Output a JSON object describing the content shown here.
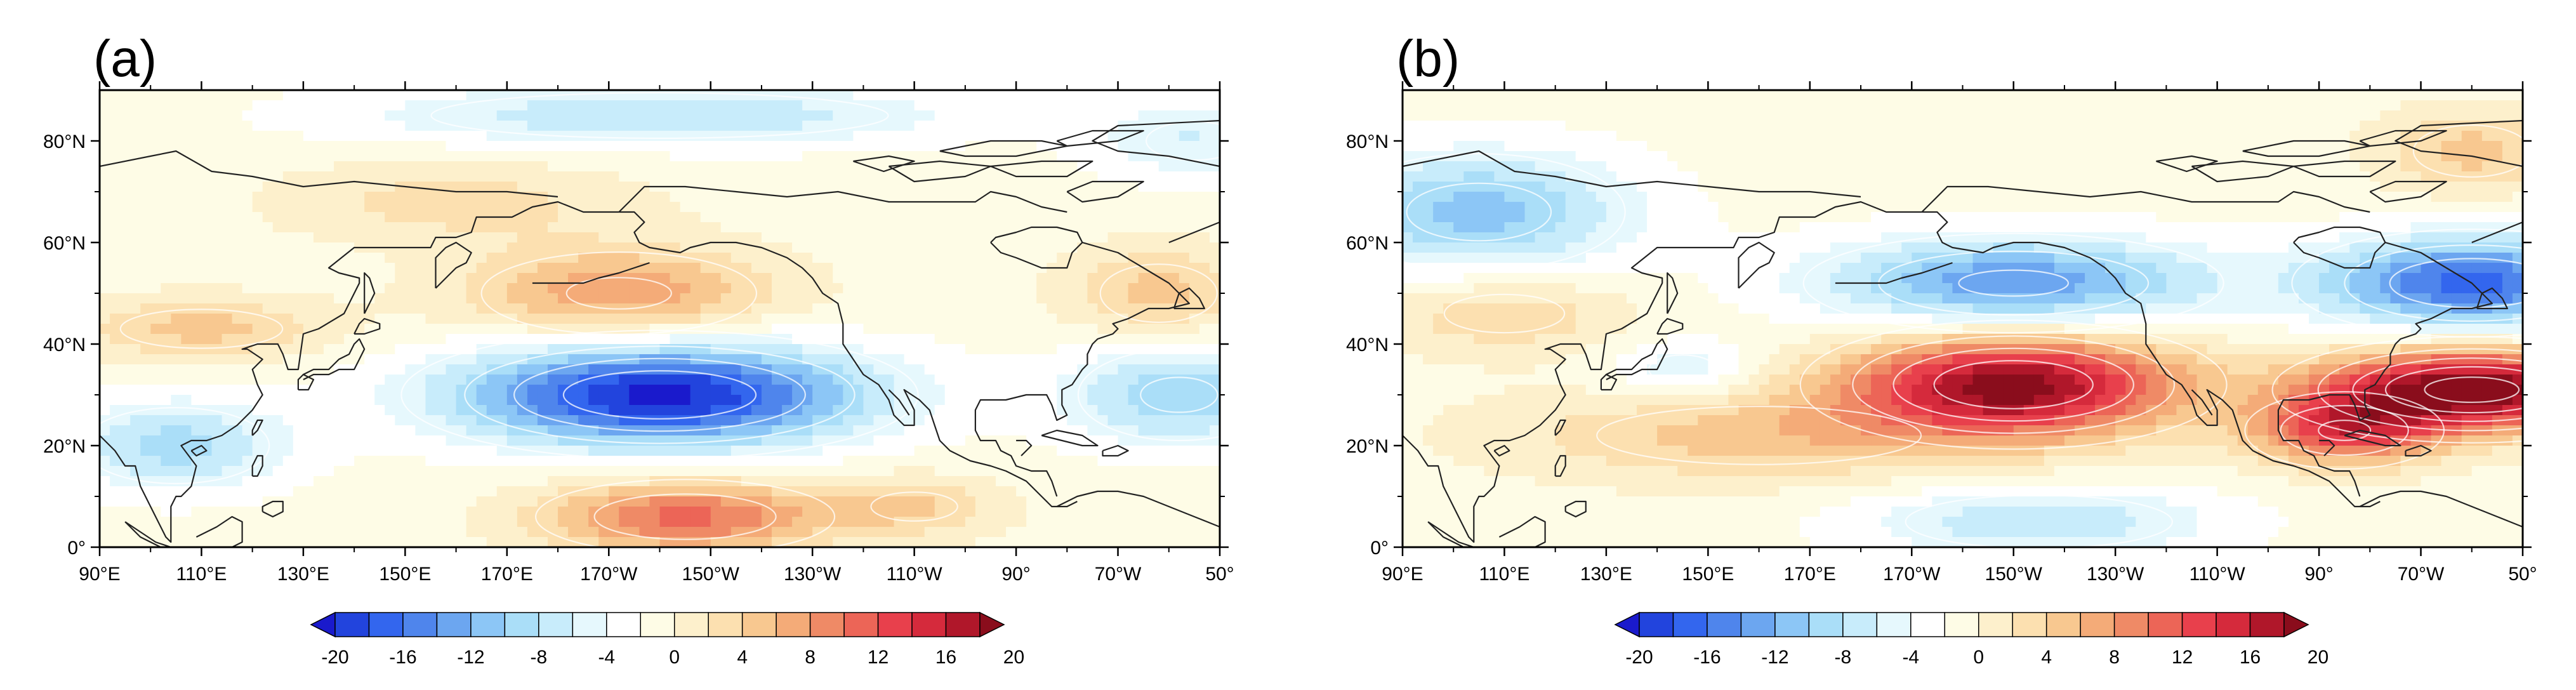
{
  "chart_data": [
    {
      "type": "heatmap",
      "panel_label": "(a)",
      "projection": "cylindrical-equidistant",
      "lon_ticks": [
        "90°E",
        "110°E",
        "130°E",
        "150°E",
        "170°E",
        "170°W",
        "150°W",
        "130°W",
        "110°W",
        "90°",
        "70°W",
        "50°"
      ],
      "lat_ticks": [
        "0°",
        "20°N",
        "40°N",
        "60°N",
        "80°N"
      ],
      "lon_range_deg_east": [
        90,
        310
      ],
      "lat_range": [
        0,
        90
      ],
      "anomaly_centers": [
        {
          "lon": 200,
          "lat": 30,
          "value": -20,
          "rx": 40,
          "ry": 10
        },
        {
          "lon": 192,
          "lat": 50,
          "value": 9,
          "rx": 30,
          "ry": 9
        },
        {
          "lon": 205,
          "lat": 6,
          "value": 12,
          "rx": 28,
          "ry": 7
        },
        {
          "lon": 302,
          "lat": 30,
          "value": -9,
          "rx": 22,
          "ry": 10
        },
        {
          "lon": 298,
          "lat": 50,
          "value": 6,
          "rx": 18,
          "ry": 9
        },
        {
          "lon": 105,
          "lat": 20,
          "value": -8,
          "rx": 22,
          "ry": 9
        },
        {
          "lon": 110,
          "lat": 43,
          "value": 6,
          "rx": 25,
          "ry": 6
        },
        {
          "lon": 160,
          "lat": 68,
          "value": 4,
          "rx": 35,
          "ry": 8
        },
        {
          "lon": 200,
          "lat": 85,
          "value": -7,
          "rx": 60,
          "ry": 6
        },
        {
          "lon": 250,
          "lat": 8,
          "value": 5,
          "rx": 18,
          "ry": 6
        },
        {
          "lon": 305,
          "lat": 80,
          "value": -5,
          "rx": 20,
          "ry": 8
        }
      ]
    },
    {
      "type": "heatmap",
      "panel_label": "(b)",
      "projection": "cylindrical-equidistant",
      "lon_ticks": [
        "90°E",
        "110°E",
        "130°E",
        "150°E",
        "170°E",
        "170°W",
        "150°W",
        "130°W",
        "110°W",
        "90°",
        "70°W",
        "50°"
      ],
      "lat_ticks": [
        "0°",
        "20°N",
        "40°N",
        "60°N",
        "80°N"
      ],
      "lon_range_deg_east": [
        90,
        310
      ],
      "lat_range": [
        0,
        90
      ],
      "anomaly_centers": [
        {
          "lon": 210,
          "lat": 32,
          "value": 20,
          "rx": 33,
          "ry": 10
        },
        {
          "lon": 300,
          "lat": 31,
          "value": 22,
          "rx": 30,
          "ry": 8
        },
        {
          "lon": 275,
          "lat": 23,
          "value": 13,
          "rx": 18,
          "ry": 7
        },
        {
          "lon": 210,
          "lat": 52,
          "value": -13,
          "rx": 38,
          "ry": 9
        },
        {
          "lon": 300,
          "lat": 52,
          "value": -16,
          "rx": 30,
          "ry": 9
        },
        {
          "lon": 105,
          "lat": 66,
          "value": -10,
          "rx": 30,
          "ry": 12
        },
        {
          "lon": 215,
          "lat": 5,
          "value": -7,
          "rx": 35,
          "ry": 7
        },
        {
          "lon": 110,
          "lat": 46,
          "value": 5,
          "rx": 25,
          "ry": 8
        },
        {
          "lon": 160,
          "lat": 22,
          "value": 6,
          "rx": 50,
          "ry": 9
        },
        {
          "lon": 145,
          "lat": 35,
          "value": -5,
          "rx": 14,
          "ry": 6
        },
        {
          "lon": 300,
          "lat": 78,
          "value": 6,
          "rx": 18,
          "ry": 8
        }
      ]
    }
  ],
  "colorbar": {
    "tick_labels": [
      "-20",
      "-16",
      "-12",
      "-8",
      "-4",
      "0",
      "4",
      "8",
      "12",
      "16",
      "20"
    ],
    "colors": [
      "#1a1acc",
      "#2244dd",
      "#3366ee",
      "#4f85ec",
      "#6ca6f0",
      "#8cc6f6",
      "#aadef8",
      "#c8ecfb",
      "#e6f8fd",
      "#ffffff",
      "#fefce6",
      "#fdf0cc",
      "#fce0b0",
      "#f8c890",
      "#f4ab78",
      "#ef8a66",
      "#ec6557",
      "#e8404c",
      "#d52a3c",
      "#b0172a",
      "#8a0d1c"
    ]
  },
  "colors": {
    "coast": "#222222",
    "frame": "#000000",
    "contour": "#ffffff"
  }
}
